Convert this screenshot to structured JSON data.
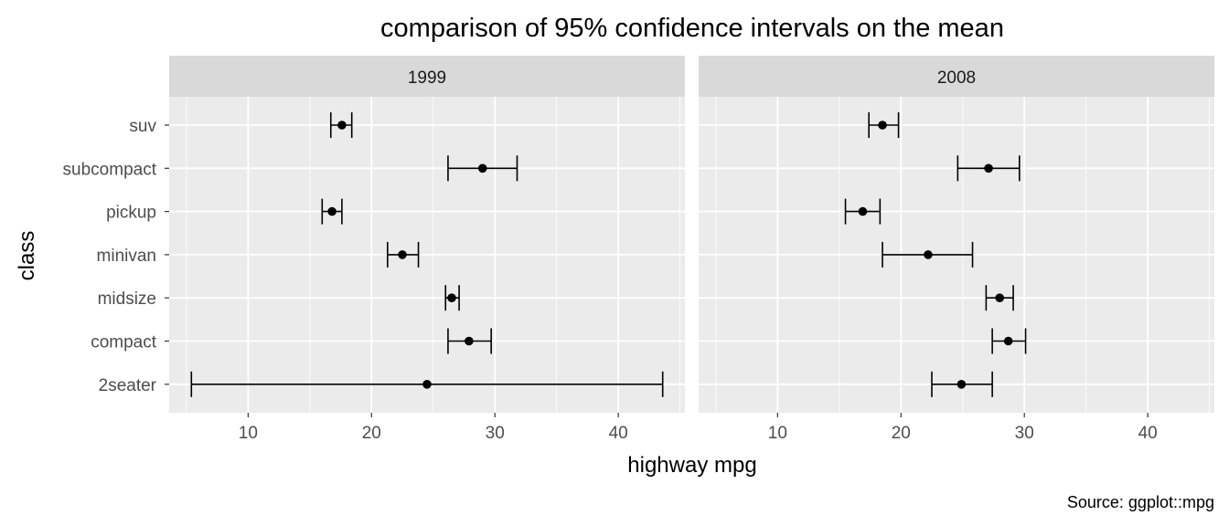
{
  "chart_data": {
    "type": "errorbar",
    "title": "comparison of 95% confidence intervals on the mean",
    "xlabel": "highway mpg",
    "ylabel": "class",
    "caption": "Source: ggplot::mpg",
    "xlim": [
      3.6,
      45.4
    ],
    "x_ticks": [
      10,
      20,
      30,
      40
    ],
    "x_tick_labels": [
      "10",
      "20",
      "30",
      "40"
    ],
    "categories": [
      "suv",
      "subcompact",
      "pickup",
      "minivan",
      "midsize",
      "compact",
      "2seater"
    ],
    "grid": true,
    "colors": {
      "panel_bg": "#ebebeb",
      "strip_bg": "#d9d9d9",
      "grid": "#ffffff",
      "mark": "#000000"
    },
    "panels": [
      {
        "label": "1999",
        "points": [
          {
            "category": "suv",
            "mean": 17.6,
            "lo": 16.7,
            "hi": 18.4
          },
          {
            "category": "subcompact",
            "mean": 29.0,
            "lo": 26.2,
            "hi": 31.8
          },
          {
            "category": "pickup",
            "mean": 16.8,
            "lo": 16.0,
            "hi": 17.6
          },
          {
            "category": "minivan",
            "mean": 22.5,
            "lo": 21.3,
            "hi": 23.8
          },
          {
            "category": "midsize",
            "mean": 26.5,
            "lo": 26.0,
            "hi": 27.1
          },
          {
            "category": "compact",
            "mean": 27.9,
            "lo": 26.2,
            "hi": 29.7
          },
          {
            "category": "2seater",
            "mean": 24.5,
            "lo": 5.4,
            "hi": 43.6
          }
        ]
      },
      {
        "label": "2008",
        "points": [
          {
            "category": "suv",
            "mean": 18.5,
            "lo": 17.4,
            "hi": 19.8
          },
          {
            "category": "subcompact",
            "mean": 27.1,
            "lo": 24.6,
            "hi": 29.6
          },
          {
            "category": "pickup",
            "mean": 16.9,
            "lo": 15.5,
            "hi": 18.3
          },
          {
            "category": "minivan",
            "mean": 22.2,
            "lo": 18.5,
            "hi": 25.8
          },
          {
            "category": "midsize",
            "mean": 28.0,
            "lo": 26.9,
            "hi": 29.1
          },
          {
            "category": "compact",
            "mean": 28.7,
            "lo": 27.4,
            "hi": 30.1
          },
          {
            "category": "2seater",
            "mean": 24.9,
            "lo": 22.5,
            "hi": 27.4
          }
        ]
      }
    ]
  }
}
